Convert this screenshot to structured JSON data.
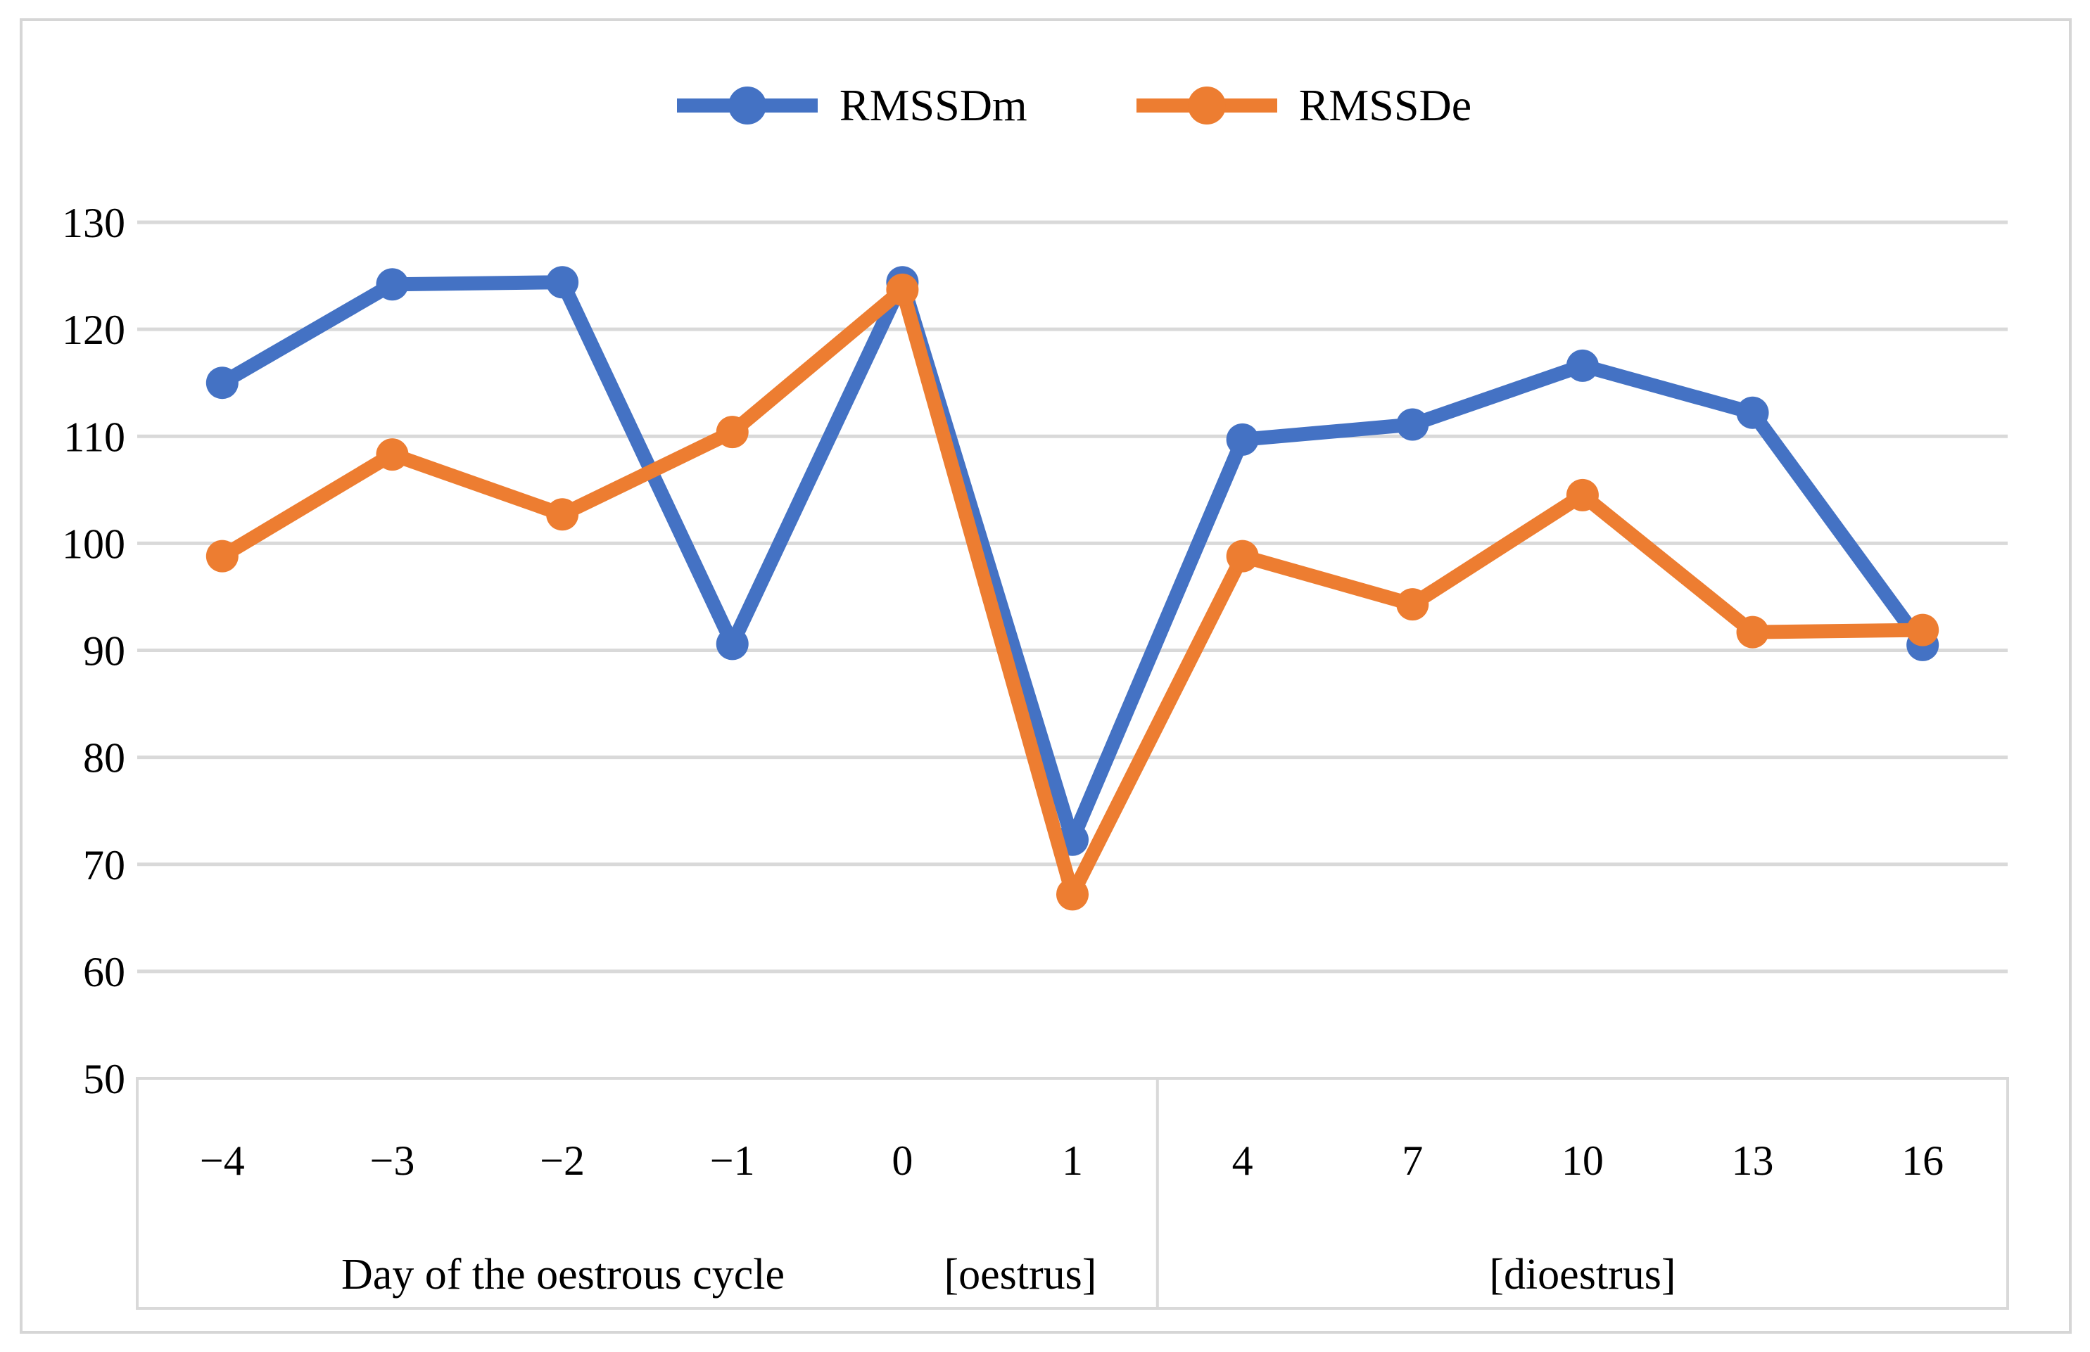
{
  "chart_data": {
    "type": "line",
    "title": "",
    "categories": [
      "−4",
      "−3",
      "−2",
      "−1",
      "0",
      "1",
      "4",
      "7",
      "10",
      "13",
      "16"
    ],
    "series": [
      {
        "name": "RMSSDm",
        "color": "#4472C4",
        "values": [
          115.0,
          124.2,
          124.4,
          90.6,
          124.4,
          72.3,
          109.7,
          111.1,
          116.6,
          112.2,
          90.5
        ]
      },
      {
        "name": "RMSSDe",
        "color": "#ED7D31",
        "values": [
          98.8,
          108.3,
          102.7,
          110.4,
          123.7,
          67.2,
          98.8,
          94.3,
          104.5,
          91.7,
          91.9
        ]
      }
    ],
    "ylim": [
      50,
      130
    ],
    "yticks": [
      130,
      120,
      110,
      100,
      90,
      80,
      70,
      60,
      50
    ],
    "grid": true,
    "legend_position": "top-center",
    "x_axis": {
      "groups": [
        {
          "axis_label": "Day of the oestrous cycle",
          "phase_label": "[oestrus]",
          "category_count": 6
        },
        {
          "axis_label": "",
          "phase_label": "[dioestrus]",
          "category_count": 5
        }
      ]
    }
  },
  "styles": {
    "grid_color": "#D9D9D9",
    "box_color": "#D9D9D9",
    "outer_border_color": "#D6D6D6",
    "text_color": "#000000",
    "background": "#FFFFFF"
  }
}
